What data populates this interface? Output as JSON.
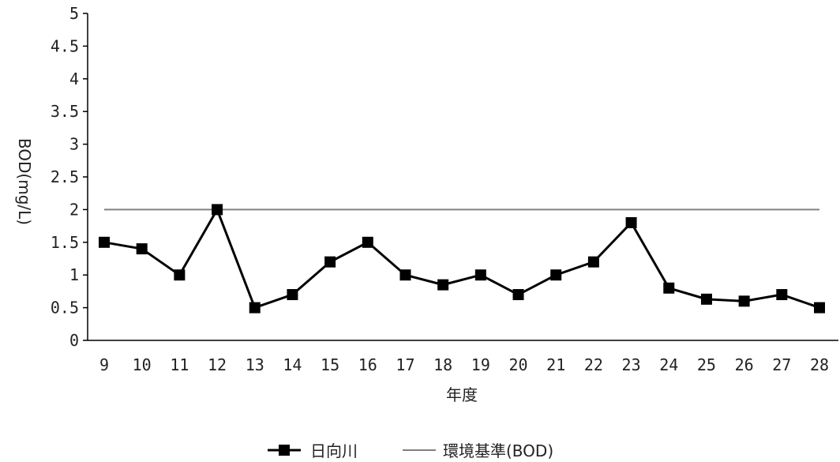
{
  "chart_data": {
    "type": "line",
    "xlabel": "年度",
    "ylabel": "BOD(mg/L)",
    "ylim": [
      0,
      5
    ],
    "yticks": [
      "0",
      "0.5",
      "1",
      "1.5",
      "2",
      "2.5",
      "3",
      "3.5",
      "4",
      "4.5",
      "5"
    ],
    "categories": [
      "9",
      "10",
      "11",
      "12",
      "13",
      "14",
      "15",
      "16",
      "17",
      "18",
      "19",
      "20",
      "21",
      "22",
      "23",
      "24",
      "25",
      "26",
      "27",
      "28"
    ],
    "grid": false,
    "legend_position": "bottom",
    "series": [
      {
        "name": "日向川",
        "color": "#000000",
        "marker": "square",
        "values": [
          1.5,
          1.4,
          1.0,
          2.0,
          0.5,
          0.7,
          1.2,
          1.5,
          1.0,
          0.85,
          1.0,
          0.7,
          1.0,
          1.2,
          1.8,
          0.8,
          0.63,
          0.6,
          0.7,
          0.5
        ]
      },
      {
        "name": "環境基準(BOD)",
        "color": "#808080",
        "marker": "none",
        "values": [
          2,
          2,
          2,
          2,
          2,
          2,
          2,
          2,
          2,
          2,
          2,
          2,
          2,
          2,
          2,
          2,
          2,
          2,
          2,
          2
        ]
      }
    ]
  }
}
